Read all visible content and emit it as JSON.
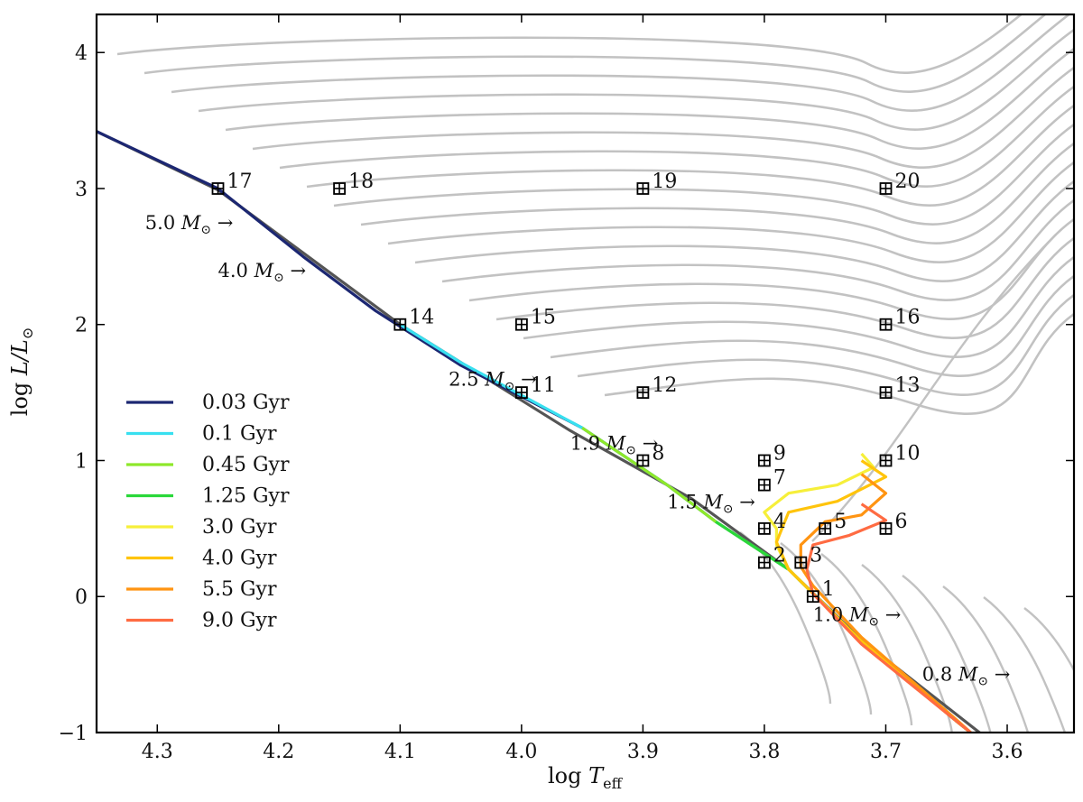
{
  "chart_data": {
    "type": "line",
    "title": "",
    "xlabel_base": "log ",
    "xlabel_var": "T",
    "xlabel_sub": "eff",
    "ylabel_base": "log ",
    "ylabel_var": "L/L",
    "ylabel_sub": "⊙",
    "xlim": [
      4.35,
      3.545
    ],
    "ylim": [
      -1.0,
      4.28
    ],
    "x_inverted": true,
    "grid": false,
    "legend_position": "lower-left",
    "x_ticks": [
      {
        "value": 4.3,
        "label": "4.3"
      },
      {
        "value": 4.2,
        "label": "4.2"
      },
      {
        "value": 4.1,
        "label": "4.1"
      },
      {
        "value": 4.0,
        "label": "4.0"
      },
      {
        "value": 3.9,
        "label": "3.9"
      },
      {
        "value": 3.8,
        "label": "3.8"
      },
      {
        "value": 3.7,
        "label": "3.7"
      },
      {
        "value": 3.6,
        "label": "3.6"
      }
    ],
    "y_ticks": [
      {
        "value": 4,
        "label": "4"
      },
      {
        "value": 3,
        "label": "3"
      },
      {
        "value": 2,
        "label": "2"
      },
      {
        "value": 1,
        "label": "1"
      },
      {
        "value": 0,
        "label": "0"
      },
      {
        "value": -1,
        "label": "−1"
      }
    ],
    "zams": [
      [
        4.35,
        3.42
      ],
      [
        4.25,
        2.99
      ],
      [
        4.1,
        2.0
      ],
      [
        3.96,
        1.22
      ],
      [
        3.86,
        0.72
      ],
      [
        3.78,
        0.2
      ],
      [
        3.72,
        -0.32
      ],
      [
        3.64,
        -0.88
      ],
      [
        3.62,
        -1.02
      ]
    ],
    "series": [
      {
        "name": "0.03 Gyr",
        "color": "#1c2772",
        "points": [
          [
            4.35,
            3.42
          ],
          [
            4.25,
            3.0
          ],
          [
            4.18,
            2.5
          ],
          [
            4.12,
            2.1
          ],
          [
            4.05,
            1.7
          ],
          [
            3.95,
            1.24
          ],
          [
            3.88,
            0.82
          ],
          [
            3.84,
            0.55
          ],
          [
            3.78,
            0.2
          ],
          [
            3.72,
            -0.33
          ],
          [
            3.64,
            -0.93
          ],
          [
            3.63,
            -1.0
          ]
        ]
      },
      {
        "name": "0.1 Gyr",
        "color": "#38e0f0",
        "points": [
          [
            4.1,
            2.0
          ],
          [
            4.05,
            1.72
          ],
          [
            3.95,
            1.24
          ],
          [
            3.88,
            0.82
          ],
          [
            3.84,
            0.55
          ],
          [
            3.78,
            0.2
          ],
          [
            3.72,
            -0.33
          ],
          [
            3.64,
            -0.93
          ],
          [
            3.63,
            -1.0
          ]
        ]
      },
      {
        "name": "0.45 Gyr",
        "color": "#8ee82a",
        "points": [
          [
            3.95,
            1.24
          ],
          [
            3.88,
            0.82
          ],
          [
            3.84,
            0.55
          ],
          [
            3.78,
            0.2
          ],
          [
            3.72,
            -0.33
          ],
          [
            3.64,
            -0.93
          ],
          [
            3.63,
            -1.0
          ]
        ]
      },
      {
        "name": "1.25 Gyr",
        "color": "#2ad83a",
        "points": [
          [
            3.84,
            0.55
          ],
          [
            3.78,
            0.2
          ],
          [
            3.72,
            -0.33
          ],
          [
            3.64,
            -0.93
          ],
          [
            3.63,
            -1.0
          ]
        ]
      },
      {
        "name": "3.0 Gyr",
        "color": "#f6ef3a",
        "points": [
          [
            3.72,
            1.05
          ],
          [
            3.71,
            0.95
          ],
          [
            3.74,
            0.82
          ],
          [
            3.78,
            0.76
          ],
          [
            3.8,
            0.62
          ],
          [
            3.79,
            0.5
          ],
          [
            3.79,
            0.38
          ],
          [
            3.78,
            0.2
          ],
          [
            3.72,
            -0.33
          ],
          [
            3.64,
            -0.93
          ],
          [
            3.63,
            -1.0
          ]
        ]
      },
      {
        "name": "4.0 Gyr",
        "color": "#ffc40c",
        "points": [
          [
            3.72,
            1.0
          ],
          [
            3.7,
            0.88
          ],
          [
            3.74,
            0.7
          ],
          [
            3.78,
            0.62
          ],
          [
            3.79,
            0.4
          ],
          [
            3.78,
            0.2
          ],
          [
            3.72,
            -0.33
          ],
          [
            3.64,
            -0.93
          ],
          [
            3.63,
            -1.0
          ]
        ]
      },
      {
        "name": "5.5 Gyr",
        "color": "#ff9412",
        "points": [
          [
            3.72,
            0.9
          ],
          [
            3.7,
            0.76
          ],
          [
            3.72,
            0.6
          ],
          [
            3.75,
            0.55
          ],
          [
            3.77,
            0.38
          ],
          [
            3.77,
            0.22
          ],
          [
            3.76,
            0.08
          ],
          [
            3.72,
            -0.3
          ],
          [
            3.64,
            -0.92
          ],
          [
            3.63,
            -1.0
          ]
        ]
      },
      {
        "name": "9.0 Gyr",
        "color": "#ff6b42",
        "points": [
          [
            3.72,
            0.68
          ],
          [
            3.7,
            0.56
          ],
          [
            3.73,
            0.45
          ],
          [
            3.76,
            0.38
          ],
          [
            3.765,
            0.2
          ],
          [
            3.76,
            0.02
          ],
          [
            3.72,
            -0.35
          ],
          [
            3.64,
            -0.93
          ],
          [
            3.63,
            -1.0
          ]
        ]
      }
    ],
    "mass_labels": [
      {
        "label": "5.0 ",
        "label_unit": "M",
        "label_sub": "⊙",
        "x": 4.31,
        "y": 2.7
      },
      {
        "label": "4.0 ",
        "label_unit": "M",
        "label_sub": "⊙",
        "x": 4.25,
        "y": 2.35
      },
      {
        "label": "2.5 ",
        "label_unit": "M",
        "label_sub": "⊙",
        "x": 4.06,
        "y": 1.55
      },
      {
        "label": "1.9 ",
        "label_unit": "M",
        "label_sub": "⊙",
        "x": 3.96,
        "y": 1.08
      },
      {
        "label": "1.5 ",
        "label_unit": "M",
        "label_sub": "⊙",
        "x": 3.88,
        "y": 0.65
      },
      {
        "label": "1.0 ",
        "label_unit": "M",
        "label_sub": "⊙",
        "x": 3.76,
        "y": -0.18
      },
      {
        "label": "0.8 ",
        "label_unit": "M",
        "label_sub": "⊙",
        "x": 3.67,
        "y": -0.62
      }
    ],
    "arrow_symbol": "→",
    "markers": [
      {
        "id": "1",
        "x": 3.76,
        "y": 0.0
      },
      {
        "id": "2",
        "x": 3.8,
        "y": 0.25
      },
      {
        "id": "3",
        "x": 3.77,
        "y": 0.25
      },
      {
        "id": "4",
        "x": 3.8,
        "y": 0.5
      },
      {
        "id": "5",
        "x": 3.75,
        "y": 0.5
      },
      {
        "id": "6",
        "x": 3.7,
        "y": 0.5
      },
      {
        "id": "7",
        "x": 3.8,
        "y": 0.82
      },
      {
        "id": "8",
        "x": 3.9,
        "y": 1.0
      },
      {
        "id": "9",
        "x": 3.8,
        "y": 1.0
      },
      {
        "id": "10",
        "x": 3.7,
        "y": 1.0
      },
      {
        "id": "11",
        "x": 4.0,
        "y": 1.5
      },
      {
        "id": "12",
        "x": 3.9,
        "y": 1.5
      },
      {
        "id": "13",
        "x": 3.7,
        "y": 1.5
      },
      {
        "id": "14",
        "x": 4.1,
        "y": 2.0
      },
      {
        "id": "15",
        "x": 4.0,
        "y": 2.0
      },
      {
        "id": "16",
        "x": 3.7,
        "y": 2.0
      },
      {
        "id": "17",
        "x": 4.25,
        "y": 3.0
      },
      {
        "id": "18",
        "x": 4.15,
        "y": 3.0
      },
      {
        "id": "19",
        "x": 3.9,
        "y": 3.0
      },
      {
        "id": "20",
        "x": 3.7,
        "y": 3.0
      }
    ],
    "marker_color": "#000000",
    "background_track_color": "#c2c2c2",
    "zams_color": "#555555"
  }
}
